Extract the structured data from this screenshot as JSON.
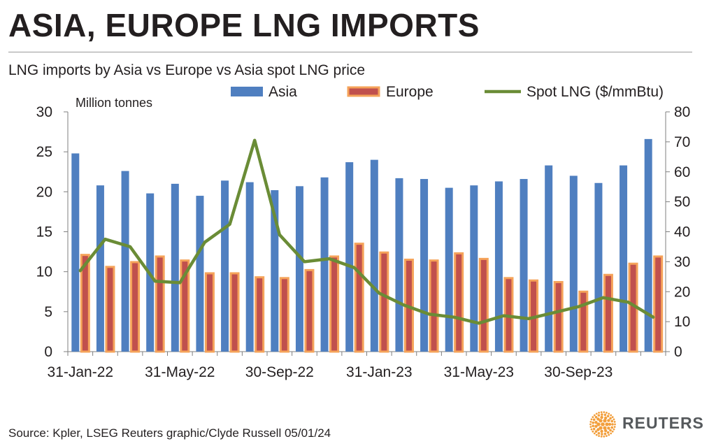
{
  "header": {
    "title": "ASIA, EUROPE LNG IMPORTS",
    "subtitle": "LNG imports by Asia vs Europe vs Asia spot LNG price"
  },
  "footer": {
    "source": "Source: Kpler, LSEG    Reuters graphic/Clyde Russell 05/01/24"
  },
  "logo": {
    "text": "REUTERS",
    "icon": "reuters-dot-logo-icon"
  },
  "colors": {
    "asia": "#4f7fc0",
    "europe_fill": "#c0504d",
    "europe_border": "#f5a35a",
    "spot": "#6a8c36",
    "axis": "#7f7f7f",
    "text": "#231f20"
  },
  "chart_data": {
    "type": "bar",
    "unit_label": "Million tonnes",
    "x_tick_labels": [
      "31-Jan-22",
      "31-May-22",
      "30-Sep-22",
      "31-Jan-23",
      "31-May-23",
      "30-Sep-23"
    ],
    "categories": [
      "Jan-22",
      "Feb-22",
      "Mar-22",
      "Apr-22",
      "May-22",
      "Jun-22",
      "Jul-22",
      "Aug-22",
      "Sep-22",
      "Oct-22",
      "Nov-22",
      "Dec-22",
      "Jan-23",
      "Feb-23",
      "Mar-23",
      "Apr-23",
      "May-23",
      "Jun-23",
      "Jul-23",
      "Aug-23",
      "Sep-23",
      "Oct-23",
      "Nov-23",
      "Dec-23"
    ],
    "y_left": {
      "min": 0,
      "max": 30,
      "ticks": [
        0,
        5,
        10,
        15,
        20,
        25,
        30
      ]
    },
    "y_right": {
      "min": 0,
      "max": 80,
      "ticks": [
        0,
        10,
        20,
        30,
        40,
        50,
        60,
        70,
        80
      ]
    },
    "legend_position": "top",
    "grid": false,
    "series": [
      {
        "name": "Asia",
        "type": "bar",
        "axis": "left",
        "values": [
          24.8,
          20.8,
          22.6,
          19.8,
          21.0,
          19.5,
          21.4,
          21.2,
          20.2,
          20.7,
          21.8,
          23.7,
          24.0,
          21.7,
          21.6,
          20.5,
          20.8,
          21.3,
          21.6,
          23.3,
          22.0,
          21.1,
          23.3,
          26.6
        ]
      },
      {
        "name": "Europe",
        "type": "bar",
        "axis": "left",
        "values": [
          12.1,
          10.6,
          11.2,
          11.9,
          11.4,
          9.8,
          9.8,
          9.3,
          9.2,
          10.2,
          11.9,
          13.5,
          12.4,
          11.5,
          11.4,
          12.3,
          11.6,
          9.2,
          8.9,
          8.7,
          7.5,
          9.6,
          11.0,
          11.9
        ]
      },
      {
        "name": "Spot LNG ($/mmBtu)",
        "type": "line",
        "axis": "right",
        "values": [
          27,
          37.5,
          35,
          23.5,
          23,
          36.5,
          42.5,
          70.5,
          39,
          30,
          31,
          28,
          19.5,
          15.5,
          12.5,
          11.5,
          9.5,
          12,
          11,
          13,
          15,
          18,
          16.5,
          11.5
        ]
      }
    ]
  }
}
